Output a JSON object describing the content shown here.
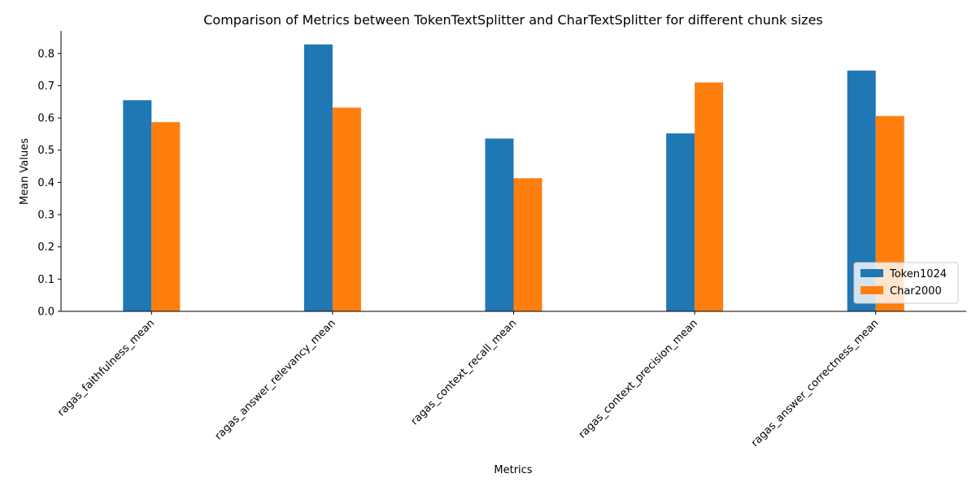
{
  "chart_data": {
    "type": "bar",
    "title": "Comparison of Metrics between TokenTextSplitter and CharTextSplitter for different chunk sizes",
    "xlabel": "Metrics",
    "ylabel": "Mean Values",
    "categories": [
      "ragas_faithfulness_mean",
      "ragas_answer_relevancy_mean",
      "ragas_context_recall_mean",
      "ragas_context_precision_mean",
      "ragas_answer_correctness_mean"
    ],
    "series": [
      {
        "name": "Token1024",
        "color": "#1f77b4",
        "values": [
          0.655,
          0.828,
          0.536,
          0.552,
          0.747
        ]
      },
      {
        "name": "Char2000",
        "color": "#ff7f0e",
        "values": [
          0.587,
          0.632,
          0.413,
          0.71,
          0.606
        ]
      }
    ],
    "ylim": [
      0,
      0.87
    ],
    "yticks": [
      0.0,
      0.1,
      0.2,
      0.3,
      0.4,
      0.5,
      0.6,
      0.7,
      0.8
    ],
    "ytick_labels": [
      "0.0",
      "0.1",
      "0.2",
      "0.3",
      "0.4",
      "0.5",
      "0.6",
      "0.7",
      "0.8"
    ],
    "grid": false,
    "legend_position": "bottom-right"
  }
}
